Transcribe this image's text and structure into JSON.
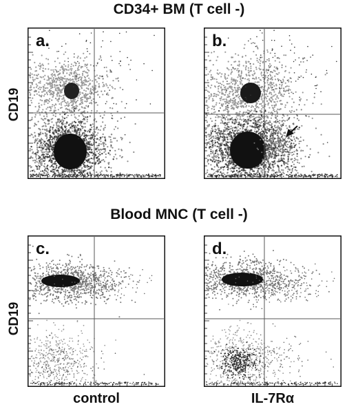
{
  "figure": {
    "top_title": "CD34+ BM (T cell -)",
    "bottom_title": "Blood MNC (T cell -)",
    "y_axis_label": "CD19",
    "x_axis_label_left": "control",
    "x_axis_label_right": "IL-7Rα"
  },
  "chart_data": [
    {
      "type": "scatter",
      "panel": "a.",
      "title": "CD34+ BM (T cell -)",
      "xlabel": "control",
      "ylabel": "CD19"
    },
    {
      "type": "scatter",
      "panel": "b.",
      "title": "CD34+ BM (T cell -)",
      "xlabel": "IL-7Rα",
      "ylabel": "CD19",
      "annotation": "arrow"
    },
    {
      "type": "scatter",
      "panel": "c.",
      "title": "Blood MNC (T cell -)",
      "xlabel": "control",
      "ylabel": "CD19"
    },
    {
      "type": "scatter",
      "panel": "d.",
      "title": "Blood MNC (T cell -)",
      "xlabel": "IL-7Rα",
      "ylabel": "CD19"
    }
  ]
}
